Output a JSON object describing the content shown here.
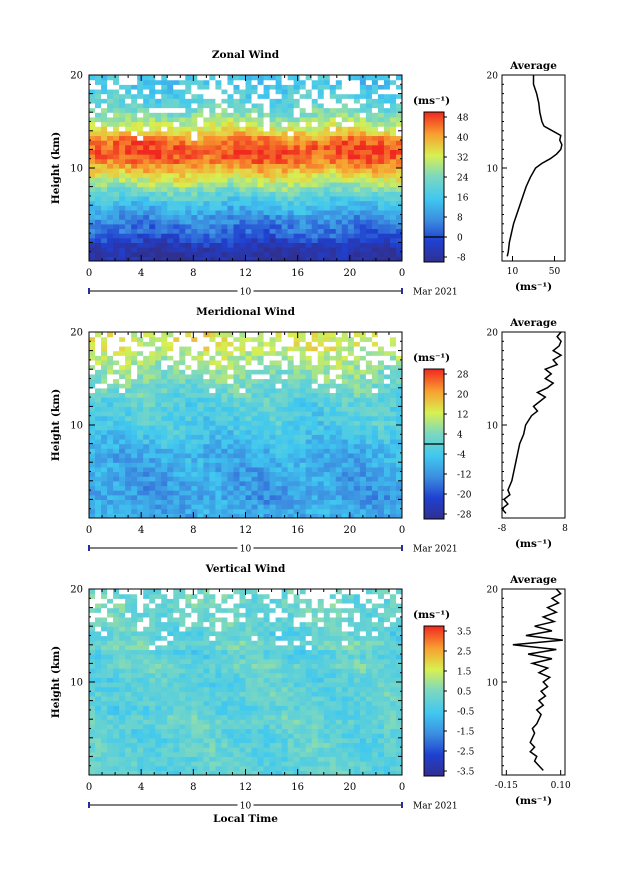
{
  "chart_data": [
    {
      "type": "heatmap",
      "title": "Zonal Wind",
      "ylabel": "Height (km)",
      "xlabel": "",
      "xlim": [
        0,
        24
      ],
      "ylim": [
        0,
        20
      ],
      "x_ticks": [
        "0",
        "4",
        "8",
        "12",
        "16",
        "20",
        "0"
      ],
      "y_ticks": [
        "20",
        "10"
      ],
      "day_label": "10",
      "date_label": "Mar 2021",
      "colorbar": {
        "unit": "(ms⁻¹)",
        "min": -8,
        "max": 48,
        "zero_line": 0,
        "ticks": [
          "48",
          "40",
          "32",
          "24",
          "16",
          "8",
          "0",
          "-8"
        ]
      },
      "profile_by_height_km": [
        {
          "h": 1,
          "v": -6
        },
        {
          "h": 2,
          "v": -2
        },
        {
          "h": 3,
          "v": 4
        },
        {
          "h": 4,
          "v": 6
        },
        {
          "h": 5,
          "v": 10
        },
        {
          "h": 6,
          "v": 14
        },
        {
          "h": 7,
          "v": 20
        },
        {
          "h": 8,
          "v": 26
        },
        {
          "h": 9,
          "v": 32
        },
        {
          "h": 10,
          "v": 38
        },
        {
          "h": 11,
          "v": 44
        },
        {
          "h": 12,
          "v": 46
        },
        {
          "h": 13,
          "v": 42
        },
        {
          "h": 14,
          "v": 34
        },
        {
          "h": 15,
          "v": 28
        },
        {
          "h": 16,
          "v": 24
        },
        {
          "h": 17,
          "v": 20
        },
        {
          "h": 18,
          "v": 18
        },
        {
          "h": 19,
          "v": 16
        }
      ],
      "average": {
        "title": "Average",
        "xlim": [
          0,
          60
        ],
        "x_ticks": [
          "10",
          "50"
        ],
        "x_tick_values": [
          10,
          50
        ],
        "y_ticks": [
          "20",
          "10"
        ],
        "unit": "(ms⁻¹)",
        "series": [
          {
            "y": 0.5,
            "x": 5
          },
          {
            "y": 1,
            "x": 6
          },
          {
            "y": 2,
            "x": 7
          },
          {
            "y": 3,
            "x": 9
          },
          {
            "y": 4,
            "x": 11
          },
          {
            "y": 5,
            "x": 14
          },
          {
            "y": 6,
            "x": 17
          },
          {
            "y": 7,
            "x": 20
          },
          {
            "y": 8,
            "x": 23
          },
          {
            "y": 9,
            "x": 27
          },
          {
            "y": 10,
            "x": 32
          },
          {
            "y": 10.5,
            "x": 38
          },
          {
            "y": 11,
            "x": 46
          },
          {
            "y": 11.5,
            "x": 52
          },
          {
            "y": 12,
            "x": 56
          },
          {
            "y": 12.5,
            "x": 57
          },
          {
            "y": 13,
            "x": 55
          },
          {
            "y": 13.5,
            "x": 56
          },
          {
            "y": 14,
            "x": 48
          },
          {
            "y": 14.5,
            "x": 40
          },
          {
            "y": 15,
            "x": 38
          },
          {
            "y": 15.5,
            "x": 37
          },
          {
            "y": 16,
            "x": 36
          },
          {
            "y": 17,
            "x": 35
          },
          {
            "y": 18,
            "x": 33
          },
          {
            "y": 19,
            "x": 30
          },
          {
            "y": 20,
            "x": 30
          }
        ]
      }
    },
    {
      "type": "heatmap",
      "title": "Meridional Wind",
      "ylabel": "Height (km)",
      "xlabel": "",
      "xlim": [
        0,
        24
      ],
      "ylim": [
        0,
        20
      ],
      "x_ticks": [
        "0",
        "4",
        "8",
        "12",
        "16",
        "20",
        "0"
      ],
      "y_ticks": [
        "20",
        "10"
      ],
      "day_label": "10",
      "date_label": "Mar 2021",
      "colorbar": {
        "unit": "(ms⁻¹)",
        "min": -28,
        "max": 28,
        "zero_line": 0,
        "ticks": [
          "28",
          "20",
          "12",
          "4",
          "-4",
          "-12",
          "-20",
          "-28"
        ]
      },
      "profile_by_height_km": [
        {
          "h": 1,
          "v": -8
        },
        {
          "h": 2,
          "v": -10
        },
        {
          "h": 3,
          "v": -10
        },
        {
          "h": 4,
          "v": -9
        },
        {
          "h": 5,
          "v": -9
        },
        {
          "h": 6,
          "v": -8
        },
        {
          "h": 7,
          "v": -8
        },
        {
          "h": 8,
          "v": -6
        },
        {
          "h": 9,
          "v": -4
        },
        {
          "h": 10,
          "v": -2
        },
        {
          "h": 11,
          "v": -2
        },
        {
          "h": 12,
          "v": -1
        },
        {
          "h": 13,
          "v": 0
        },
        {
          "h": 14,
          "v": 2
        },
        {
          "h": 15,
          "v": 4
        },
        {
          "h": 16,
          "v": 6
        },
        {
          "h": 17,
          "v": 8
        },
        {
          "h": 18,
          "v": 10
        },
        {
          "h": 19,
          "v": 12
        }
      ],
      "average": {
        "title": "Average",
        "xlim": [
          -8,
          8
        ],
        "x_ticks": [
          "-8",
          "8"
        ],
        "x_tick_values": [
          -8,
          8
        ],
        "y_ticks": [
          "20",
          "10"
        ],
        "unit": "(ms⁻¹)",
        "series": [
          {
            "y": 0.5,
            "x": -7
          },
          {
            "y": 1,
            "x": -8
          },
          {
            "y": 1.5,
            "x": -6.5
          },
          {
            "y": 2,
            "x": -7.5
          },
          {
            "y": 2.5,
            "x": -6
          },
          {
            "y": 3,
            "x": -6.5
          },
          {
            "y": 4,
            "x": -5.5
          },
          {
            "y": 5,
            "x": -5
          },
          {
            "y": 6,
            "x": -4.5
          },
          {
            "y": 7,
            "x": -4
          },
          {
            "y": 8,
            "x": -3.5
          },
          {
            "y": 9,
            "x": -2.5
          },
          {
            "y": 10,
            "x": -2
          },
          {
            "y": 11,
            "x": -0.5
          },
          {
            "y": 11.5,
            "x": 1
          },
          {
            "y": 12,
            "x": 0
          },
          {
            "y": 12.5,
            "x": 1.5
          },
          {
            "y": 13,
            "x": 3
          },
          {
            "y": 13.5,
            "x": 1
          },
          {
            "y": 14,
            "x": 3.5
          },
          {
            "y": 14.5,
            "x": 5
          },
          {
            "y": 15,
            "x": 3
          },
          {
            "y": 15.5,
            "x": 4.5
          },
          {
            "y": 16,
            "x": 3
          },
          {
            "y": 16.5,
            "x": 6
          },
          {
            "y": 17,
            "x": 5
          },
          {
            "y": 17.5,
            "x": 7
          },
          {
            "y": 18,
            "x": 5
          },
          {
            "y": 18.5,
            "x": 6.5
          },
          {
            "y": 19,
            "x": 7
          },
          {
            "y": 19.5,
            "x": 6
          },
          {
            "y": 20,
            "x": 7
          }
        ]
      }
    },
    {
      "type": "heatmap",
      "title": "Vertical Wind",
      "ylabel": "Height (km)",
      "xlabel": "Local Time",
      "xlim": [
        0,
        24
      ],
      "ylim": [
        0,
        20
      ],
      "x_ticks": [
        "0",
        "4",
        "8",
        "12",
        "16",
        "20",
        "0"
      ],
      "y_ticks": [
        "20",
        "10"
      ],
      "day_label": "10",
      "date_label": "Mar 2021",
      "colorbar": {
        "unit": "(ms⁻¹)",
        "min": -3.5,
        "max": 3.5,
        "zero_line": null,
        "ticks": [
          "3.5",
          "2.5",
          "1.5",
          "0.5",
          "-0.5",
          "-1.5",
          "-2.5",
          "-3.5"
        ]
      },
      "profile_by_height_km": [
        {
          "h": 1,
          "v": 0
        },
        {
          "h": 2,
          "v": -0.1
        },
        {
          "h": 3,
          "v": 0.1
        },
        {
          "h": 4,
          "v": -0.1
        },
        {
          "h": 5,
          "v": 0
        },
        {
          "h": 6,
          "v": 0.2
        },
        {
          "h": 7,
          "v": -0.2
        },
        {
          "h": 8,
          "v": 0
        },
        {
          "h": 9,
          "v": 0.1
        },
        {
          "h": 10,
          "v": -0.1
        },
        {
          "h": 11,
          "v": 0
        },
        {
          "h": 12,
          "v": 0.3
        },
        {
          "h": 13,
          "v": -0.3
        },
        {
          "h": 14,
          "v": 0.4
        },
        {
          "h": 15,
          "v": -0.2
        },
        {
          "h": 16,
          "v": 0.2
        },
        {
          "h": 17,
          "v": 0.1
        },
        {
          "h": 18,
          "v": 0.3
        },
        {
          "h": 19,
          "v": 0.2
        }
      ],
      "average": {
        "title": "Average",
        "xlim": [
          -0.17,
          0.12
        ],
        "x_ticks": [
          "-0.15",
          "0.10"
        ],
        "x_tick_values": [
          -0.15,
          0.1
        ],
        "y_ticks": [
          "20",
          "10"
        ],
        "unit": "(ms⁻¹)",
        "series": [
          {
            "y": 0.5,
            "x": 0.02
          },
          {
            "y": 1,
            "x": 0.0
          },
          {
            "y": 1.5,
            "x": -0.02
          },
          {
            "y": 2,
            "x": -0.01
          },
          {
            "y": 2.5,
            "x": -0.04
          },
          {
            "y": 3,
            "x": -0.02
          },
          {
            "y": 3.5,
            "x": -0.04
          },
          {
            "y": 4,
            "x": -0.03
          },
          {
            "y": 4.5,
            "x": -0.02
          },
          {
            "y": 5,
            "x": -0.03
          },
          {
            "y": 5.5,
            "x": -0.01
          },
          {
            "y": 6,
            "x": 0.0
          },
          {
            "y": 6.5,
            "x": 0.01
          },
          {
            "y": 7,
            "x": -0.01
          },
          {
            "y": 7.5,
            "x": 0.02
          },
          {
            "y": 8,
            "x": 0.0
          },
          {
            "y": 8.5,
            "x": 0.03
          },
          {
            "y": 9,
            "x": 0.01
          },
          {
            "y": 9.5,
            "x": 0.04
          },
          {
            "y": 10,
            "x": 0.02
          },
          {
            "y": 10.5,
            "x": 0.05
          },
          {
            "y": 11,
            "x": 0.0
          },
          {
            "y": 11.5,
            "x": 0.04
          },
          {
            "y": 12,
            "x": -0.03
          },
          {
            "y": 12.5,
            "x": 0.06
          },
          {
            "y": 13,
            "x": -0.05
          },
          {
            "y": 13.5,
            "x": 0.08
          },
          {
            "y": 14,
            "x": -0.12
          },
          {
            "y": 14.5,
            "x": 0.11
          },
          {
            "y": 15,
            "x": -0.06
          },
          {
            "y": 15.5,
            "x": 0.06
          },
          {
            "y": 16,
            "x": -0.02
          },
          {
            "y": 16.5,
            "x": 0.07
          },
          {
            "y": 17,
            "x": 0.02
          },
          {
            "y": 17.5,
            "x": 0.08
          },
          {
            "y": 18,
            "x": 0.04
          },
          {
            "y": 18.5,
            "x": 0.09
          },
          {
            "y": 19,
            "x": 0.06
          },
          {
            "y": 19.5,
            "x": 0.1
          },
          {
            "y": 20,
            "x": 0.08
          }
        ]
      }
    }
  ]
}
